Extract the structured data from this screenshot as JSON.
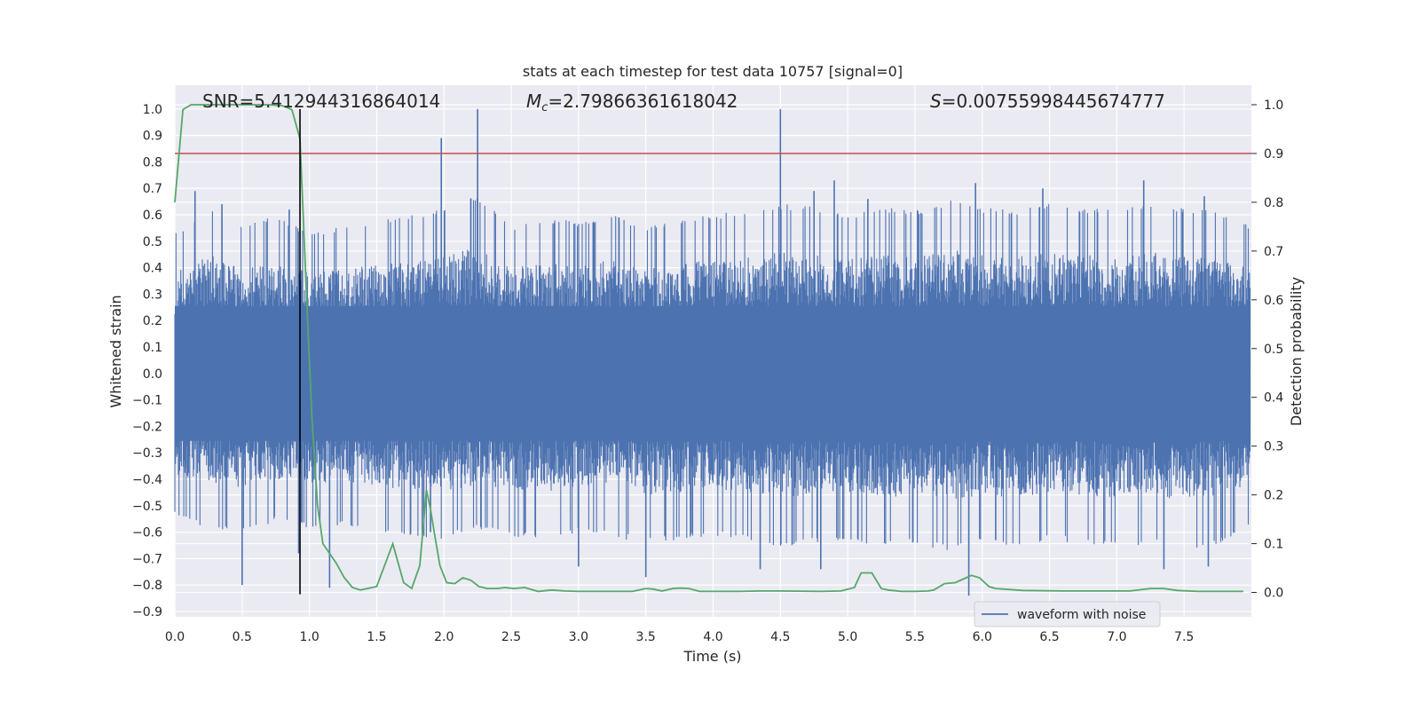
{
  "chart_data": {
    "type": "line",
    "title": "stats at each timestep for test data 10757 [signal=0]",
    "xlabel": "Time (s)",
    "ylabel": "Whitened strain",
    "y2label": "Detection probability",
    "xlim": [
      0.0,
      8.0
    ],
    "ylim": [
      -0.92,
      1.09
    ],
    "y2lim": [
      -0.05,
      1.04
    ],
    "x_ticks": [
      "0.0",
      "0.5",
      "1.0",
      "1.5",
      "2.0",
      "2.5",
      "3.0",
      "3.5",
      "4.0",
      "4.5",
      "5.0",
      "5.5",
      "6.0",
      "6.5",
      "7.0",
      "7.5"
    ],
    "y_ticks": [
      "1.0",
      "0.9",
      "0.8",
      "0.7",
      "0.6",
      "0.5",
      "0.4",
      "0.3",
      "0.2",
      "0.1",
      "0.0",
      "−0.1",
      "−0.2",
      "−0.3",
      "−0.4",
      "−0.5",
      "−0.6",
      "−0.7",
      "−0.8",
      "−0.9"
    ],
    "y2_ticks": [
      "1.0",
      "0.9",
      "0.8",
      "0.7",
      "0.6",
      "0.5",
      "0.4",
      "0.3",
      "0.2",
      "0.1",
      "0.0"
    ],
    "grid": true,
    "legend_position": "bottom-right",
    "annotations": {
      "snr": "SNR=5.412944316864014",
      "mc_symbol": "M",
      "mc_sub": "c",
      "mc_value": "=2.79866361618042",
      "s_symbol": "S",
      "s_value": "=0.00755998445674777"
    },
    "series": [
      {
        "name": "waveform with noise",
        "axis": "left",
        "color": "#4c72b0",
        "envelope_upper": [
          [
            0.0,
            0.38
          ],
          [
            0.25,
            0.45
          ],
          [
            0.5,
            0.4
          ],
          [
            0.75,
            0.43
          ],
          [
            1.0,
            0.38
          ],
          [
            1.25,
            0.4
          ],
          [
            1.5,
            0.41
          ],
          [
            1.75,
            0.43
          ],
          [
            2.0,
            0.45
          ],
          [
            2.25,
            0.48
          ],
          [
            2.5,
            0.4
          ],
          [
            2.75,
            0.42
          ],
          [
            3.0,
            0.41
          ],
          [
            3.25,
            0.43
          ],
          [
            3.5,
            0.4
          ],
          [
            3.75,
            0.42
          ],
          [
            4.0,
            0.43
          ],
          [
            4.25,
            0.44
          ],
          [
            4.5,
            0.46
          ],
          [
            4.75,
            0.45
          ],
          [
            5.0,
            0.43
          ],
          [
            5.25,
            0.45
          ],
          [
            5.5,
            0.44
          ],
          [
            5.75,
            0.47
          ],
          [
            6.0,
            0.45
          ],
          [
            6.25,
            0.44
          ],
          [
            6.5,
            0.46
          ],
          [
            6.75,
            0.45
          ],
          [
            7.0,
            0.44
          ],
          [
            7.25,
            0.46
          ],
          [
            7.5,
            0.45
          ],
          [
            7.75,
            0.44
          ],
          [
            7.99,
            0.4
          ]
        ],
        "envelope_lower": [
          [
            0.0,
            -0.38
          ],
          [
            0.25,
            -0.42
          ],
          [
            0.5,
            -0.43
          ],
          [
            0.75,
            -0.4
          ],
          [
            1.0,
            -0.42
          ],
          [
            1.25,
            -0.41
          ],
          [
            1.5,
            -0.43
          ],
          [
            1.75,
            -0.44
          ],
          [
            2.0,
            -0.45
          ],
          [
            2.25,
            -0.42
          ],
          [
            2.5,
            -0.44
          ],
          [
            2.75,
            -0.45
          ],
          [
            3.0,
            -0.43
          ],
          [
            3.25,
            -0.44
          ],
          [
            3.5,
            -0.46
          ],
          [
            3.75,
            -0.45
          ],
          [
            4.0,
            -0.44
          ],
          [
            4.25,
            -0.45
          ],
          [
            4.5,
            -0.47
          ],
          [
            4.75,
            -0.46
          ],
          [
            5.0,
            -0.45
          ],
          [
            5.25,
            -0.47
          ],
          [
            5.5,
            -0.46
          ],
          [
            5.75,
            -0.48
          ],
          [
            6.0,
            -0.46
          ],
          [
            6.25,
            -0.47
          ],
          [
            6.5,
            -0.45
          ],
          [
            6.75,
            -0.46
          ],
          [
            7.0,
            -0.47
          ],
          [
            7.25,
            -0.46
          ],
          [
            7.5,
            -0.48
          ],
          [
            7.75,
            -0.46
          ],
          [
            7.99,
            -0.42
          ]
        ],
        "peaks": [
          [
            0.15,
            0.69
          ],
          [
            0.35,
            0.64
          ],
          [
            0.85,
            0.62
          ],
          [
            1.98,
            0.89
          ],
          [
            2.25,
            1.0
          ],
          [
            3.3,
            0.59
          ],
          [
            4.5,
            1.0
          ],
          [
            4.75,
            0.69
          ],
          [
            4.9,
            0.73
          ],
          [
            5.15,
            0.66
          ],
          [
            5.95,
            0.72
          ],
          [
            6.45,
            0.7
          ],
          [
            7.2,
            0.73
          ],
          [
            7.65,
            0.67
          ],
          [
            0.5,
            -0.8
          ],
          [
            0.92,
            -0.68
          ],
          [
            1.15,
            -0.81
          ],
          [
            1.9,
            -0.6
          ],
          [
            3.0,
            -0.73
          ],
          [
            3.5,
            -0.77
          ],
          [
            4.35,
            -0.74
          ],
          [
            4.8,
            -0.74
          ],
          [
            5.9,
            -0.84
          ],
          [
            6.1,
            -0.63
          ],
          [
            7.35,
            -0.74
          ],
          [
            7.68,
            -0.73
          ]
        ]
      },
      {
        "name": "",
        "axis": "right",
        "color": "#55a868",
        "x": [
          0.0,
          0.06,
          0.12,
          0.18,
          0.3,
          0.5,
          0.7,
          0.8,
          0.87,
          0.93,
          0.98,
          1.02,
          1.06,
          1.1,
          1.15,
          1.2,
          1.26,
          1.32,
          1.38,
          1.5,
          1.62,
          1.7,
          1.76,
          1.82,
          1.87,
          1.9,
          1.93,
          1.97,
          2.02,
          2.08,
          2.14,
          2.2,
          2.26,
          2.32,
          2.4,
          2.45,
          2.52,
          2.6,
          2.7,
          2.8,
          2.9,
          3.0,
          3.2,
          3.4,
          3.5,
          3.55,
          3.62,
          3.7,
          3.76,
          3.82,
          3.9,
          4.0,
          4.2,
          4.35,
          4.5,
          4.8,
          4.95,
          5.05,
          5.1,
          5.18,
          5.25,
          5.3,
          5.4,
          5.5,
          5.6,
          5.64,
          5.72,
          5.8,
          5.88,
          5.92,
          5.98,
          6.05,
          6.1,
          6.3,
          6.6,
          6.9,
          7.1,
          7.25,
          7.35,
          7.45,
          7.6,
          7.94
        ],
        "y": [
          0.8,
          0.99,
          1.0,
          1.0,
          1.0,
          1.0,
          1.0,
          0.998,
          0.99,
          0.93,
          0.6,
          0.35,
          0.18,
          0.1,
          0.08,
          0.06,
          0.03,
          0.01,
          0.005,
          0.012,
          0.1,
          0.02,
          0.008,
          0.055,
          0.21,
          0.17,
          0.12,
          0.055,
          0.02,
          0.018,
          0.03,
          0.025,
          0.012,
          0.008,
          0.008,
          0.01,
          0.008,
          0.01,
          0.002,
          0.005,
          0.003,
          0.002,
          0.002,
          0.002,
          0.008,
          0.007,
          0.003,
          0.008,
          0.009,
          0.008,
          0.002,
          0.002,
          0.002,
          0.003,
          0.003,
          0.002,
          0.003,
          0.01,
          0.04,
          0.04,
          0.008,
          0.005,
          0.002,
          0.002,
          0.003,
          0.005,
          0.018,
          0.02,
          0.03,
          0.035,
          0.03,
          0.012,
          0.008,
          0.004,
          0.003,
          0.003,
          0.003,
          0.008,
          0.008,
          0.004,
          0.002,
          0.002
        ]
      }
    ],
    "threshold": {
      "axis": "right",
      "value": 0.9,
      "color": "#c44e52"
    },
    "vline": {
      "x": 0.93,
      "color": "#000000",
      "ymin": -0.835,
      "ymax": 1.0
    }
  }
}
